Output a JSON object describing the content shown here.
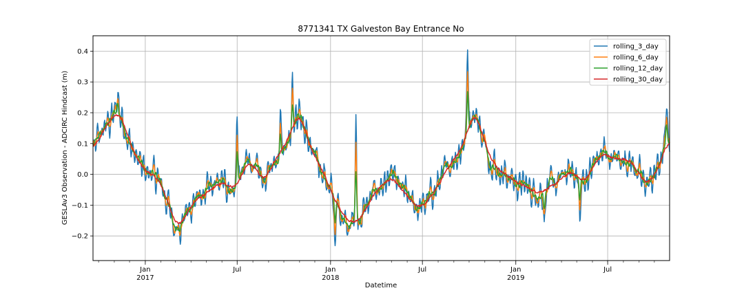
{
  "chart_data": {
    "type": "line",
    "title": "8771341 TX Galveston Bay Entrance No",
    "xlabel": "Datetime",
    "ylabel": "GESLAv3 Observation - ADCIRC Hindcast (m)",
    "x_range": [
      "2016-09-20",
      "2019-10-31"
    ],
    "ylim": [
      -0.28,
      0.45
    ],
    "y_ticks": [
      -0.2,
      -0.1,
      0.0,
      0.1,
      0.2,
      0.3,
      0.4
    ],
    "y_tick_labels": [
      "−0.2",
      "−0.1",
      "0.0",
      "0.1",
      "0.2",
      "0.3",
      "0.4"
    ],
    "x_major_ticks": [
      {
        "date": "2017-01-01",
        "label": "Jan",
        "year_label": "2017"
      },
      {
        "date": "2017-07-01",
        "label": "Jul",
        "year_label": ""
      },
      {
        "date": "2018-01-01",
        "label": "Jan",
        "year_label": "2018"
      },
      {
        "date": "2018-07-01",
        "label": "Jul",
        "year_label": ""
      },
      {
        "date": "2019-01-01",
        "label": "Jan",
        "year_label": "2019"
      },
      {
        "date": "2019-07-01",
        "label": "Jul",
        "year_label": ""
      }
    ],
    "grid": true,
    "legend_position": "top-right",
    "series": [
      {
        "name": "rolling_3_day",
        "color": "#1f77b4",
        "window_days": 3
      },
      {
        "name": "rolling_6_day",
        "color": "#ff7f0e",
        "window_days": 6
      },
      {
        "name": "rolling_12_day",
        "color": "#2ca02c",
        "window_days": 12
      },
      {
        "name": "rolling_30_day",
        "color": "#d62728",
        "window_days": 30
      }
    ],
    "anchor_points": [
      [
        "2016-09-20",
        0.07
      ],
      [
        "2016-10-05",
        0.13
      ],
      [
        "2016-10-20",
        0.17
      ],
      [
        "2016-11-05",
        0.2
      ],
      [
        "2016-11-15",
        0.19
      ],
      [
        "2016-12-01",
        0.1
      ],
      [
        "2016-12-15",
        0.05
      ],
      [
        "2016-12-30",
        0.01
      ],
      [
        "2017-01-15",
        0.0
      ],
      [
        "2017-02-01",
        -0.03
      ],
      [
        "2017-02-15",
        -0.1
      ],
      [
        "2017-03-01",
        -0.16
      ],
      [
        "2017-03-10",
        -0.17
      ],
      [
        "2017-03-25",
        -0.12
      ],
      [
        "2017-04-10",
        -0.08
      ],
      [
        "2017-04-25",
        -0.07
      ],
      [
        "2017-05-10",
        -0.05
      ],
      [
        "2017-05-25",
        -0.03
      ],
      [
        "2017-06-10",
        -0.03
      ],
      [
        "2017-06-25",
        -0.05
      ],
      [
        "2017-07-10",
        0.0
      ],
      [
        "2017-07-25",
        0.05
      ],
      [
        "2017-08-10",
        0.0
      ],
      [
        "2017-08-25",
        -0.02
      ],
      [
        "2017-09-10",
        0.04
      ],
      [
        "2017-09-25",
        0.08
      ],
      [
        "2017-10-05",
        0.1
      ],
      [
        "2017-10-20",
        0.17
      ],
      [
        "2017-11-01",
        0.2
      ],
      [
        "2017-11-15",
        0.12
      ],
      [
        "2017-11-30",
        0.05
      ],
      [
        "2017-12-15",
        0.02
      ],
      [
        "2017-12-30",
        -0.05
      ],
      [
        "2018-01-10",
        -0.09
      ],
      [
        "2018-01-25",
        -0.13
      ],
      [
        "2018-02-10",
        -0.16
      ],
      [
        "2018-02-25",
        -0.15
      ],
      [
        "2018-03-15",
        -0.1
      ],
      [
        "2018-04-01",
        -0.05
      ],
      [
        "2018-04-15",
        -0.03
      ],
      [
        "2018-05-01",
        -0.01
      ],
      [
        "2018-05-20",
        -0.05
      ],
      [
        "2018-06-10",
        -0.09
      ],
      [
        "2018-06-25",
        -0.11
      ],
      [
        "2018-07-10",
        -0.09
      ],
      [
        "2018-07-25",
        -0.05
      ],
      [
        "2018-08-10",
        -0.01
      ],
      [
        "2018-08-25",
        0.04
      ],
      [
        "2018-09-10",
        0.07
      ],
      [
        "2018-09-25",
        0.12
      ],
      [
        "2018-10-05",
        0.2
      ],
      [
        "2018-10-15",
        0.19
      ],
      [
        "2018-11-01",
        0.1
      ],
      [
        "2018-11-15",
        0.04
      ],
      [
        "2018-12-01",
        0.01
      ],
      [
        "2018-12-20",
        -0.01
      ],
      [
        "2019-01-05",
        -0.03
      ],
      [
        "2019-01-20",
        -0.04
      ],
      [
        "2019-02-10",
        -0.06
      ],
      [
        "2019-03-01",
        -0.05
      ],
      [
        "2019-03-20",
        -0.03
      ],
      [
        "2019-04-10",
        0.0
      ],
      [
        "2019-04-25",
        0.01
      ],
      [
        "2019-05-10",
        -0.03
      ],
      [
        "2019-05-25",
        0.0
      ],
      [
        "2019-06-10",
        0.05
      ],
      [
        "2019-06-25",
        0.07
      ],
      [
        "2019-07-10",
        0.05
      ],
      [
        "2019-07-25",
        0.05
      ],
      [
        "2019-08-10",
        0.05
      ],
      [
        "2019-08-25",
        0.02
      ],
      [
        "2019-09-10",
        -0.03
      ],
      [
        "2019-09-25",
        -0.02
      ],
      [
        "2019-10-10",
        0.03
      ],
      [
        "2019-10-31",
        0.13
      ]
    ],
    "peaks": [
      [
        "2016-11-08",
        0.27
      ],
      [
        "2017-03-10",
        -0.21
      ],
      [
        "2017-07-01",
        0.2
      ],
      [
        "2017-09-24",
        0.22
      ],
      [
        "2017-10-18",
        0.34
      ],
      [
        "2018-01-10",
        -0.24
      ],
      [
        "2018-02-20",
        0.21
      ],
      [
        "2018-09-28",
        0.42
      ],
      [
        "2019-02-26",
        -0.16
      ],
      [
        "2019-05-07",
        -0.16
      ],
      [
        "2019-10-25",
        0.22
      ]
    ]
  }
}
